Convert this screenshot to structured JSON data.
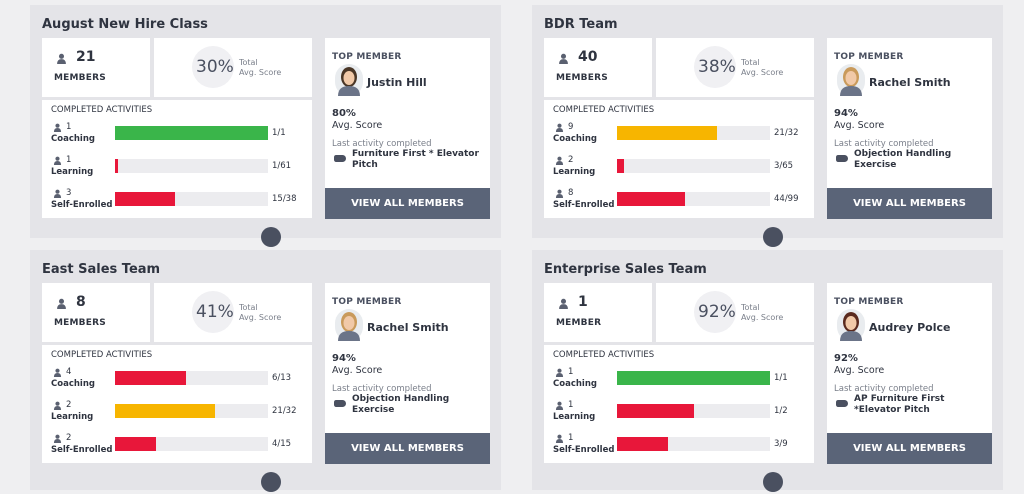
{
  "teams": [
    {
      "name": "August New Hire Class",
      "members_count": "21",
      "members_label": "MEMBERS",
      "score": "30%",
      "score_label_1": "Total",
      "score_label_2": "Avg. Score",
      "activities_title": "COMPLETED ACTIVITIES",
      "activities": [
        {
          "count": "1",
          "name": "Coaching",
          "progress": "1/1",
          "color": "#3ab54a"
        },
        {
          "count": "1",
          "name": "Learning",
          "progress": "1/61",
          "color": "#e8173a"
        },
        {
          "count": "3",
          "name": "Self-Enrolled",
          "progress": "15/38",
          "color": "#e8173a"
        }
      ],
      "top_member_label": "TOP MEMBER",
      "top_member": {
        "name": "Justin Hill",
        "score": "80%",
        "score_label": "Avg. Score",
        "last_label": "Last activity completed",
        "last_activity": "Furniture First * Elevator Pitch"
      },
      "button": "VIEW ALL MEMBERS"
    },
    {
      "name": "BDR Team",
      "members_count": "40",
      "members_label": "MEMBERS",
      "score": "38%",
      "score_label_1": "Total",
      "score_label_2": "Avg. Score",
      "activities_title": "COMPLETED ACTIVITIES",
      "activities": [
        {
          "count": "9",
          "name": "Coaching",
          "progress": "21/32",
          "color": "#f7b500"
        },
        {
          "count": "2",
          "name": "Learning",
          "progress": "3/65",
          "color": "#e8173a"
        },
        {
          "count": "8",
          "name": "Self-Enrolled",
          "progress": "44/99",
          "color": "#e8173a"
        }
      ],
      "top_member_label": "TOP MEMBER",
      "top_member": {
        "name": "Rachel Smith",
        "score": "94%",
        "score_label": "Avg. Score",
        "last_label": "Last activity completed",
        "last_activity": "Objection Handling Exercise"
      },
      "button": "VIEW ALL MEMBERS"
    },
    {
      "name": "East Sales Team",
      "members_count": "8",
      "members_label": "MEMBERS",
      "score": "41%",
      "score_label_1": "Total",
      "score_label_2": "Avg. Score",
      "activities_title": "COMPLETED ACTIVITIES",
      "activities": [
        {
          "count": "4",
          "name": "Coaching",
          "progress": "6/13",
          "color": "#e8173a"
        },
        {
          "count": "2",
          "name": "Learning",
          "progress": "21/32",
          "color": "#f7b500"
        },
        {
          "count": "2",
          "name": "Self-Enrolled",
          "progress": "4/15",
          "color": "#e8173a"
        }
      ],
      "top_member_label": "TOP MEMBER",
      "top_member": {
        "name": "Rachel Smith",
        "score": "94%",
        "score_label": "Avg. Score",
        "last_label": "Last activity completed",
        "last_activity": "Objection Handling Exercise"
      },
      "button": "VIEW ALL MEMBERS"
    },
    {
      "name": "Enterprise Sales Team",
      "members_count": "1",
      "members_label": "MEMBER",
      "score": "92%",
      "score_label_1": "Total",
      "score_label_2": "Avg. Score",
      "activities_title": "COMPLETED ACTIVITIES",
      "activities": [
        {
          "count": "1",
          "name": "Coaching",
          "progress": "1/1",
          "color": "#3ab54a"
        },
        {
          "count": "1",
          "name": "Learning",
          "progress": "1/2",
          "color": "#e8173a"
        },
        {
          "count": "1",
          "name": "Self-Enrolled",
          "progress": "3/9",
          "color": "#e8173a"
        }
      ],
      "top_member_label": "TOP MEMBER",
      "top_member": {
        "name": "Audrey Polce",
        "score": "92%",
        "score_label": "Avg. Score",
        "last_label": "Last activity completed",
        "last_activity": "AP Furniture First *Elevator Pitch"
      },
      "button": "VIEW ALL MEMBERS"
    }
  ]
}
